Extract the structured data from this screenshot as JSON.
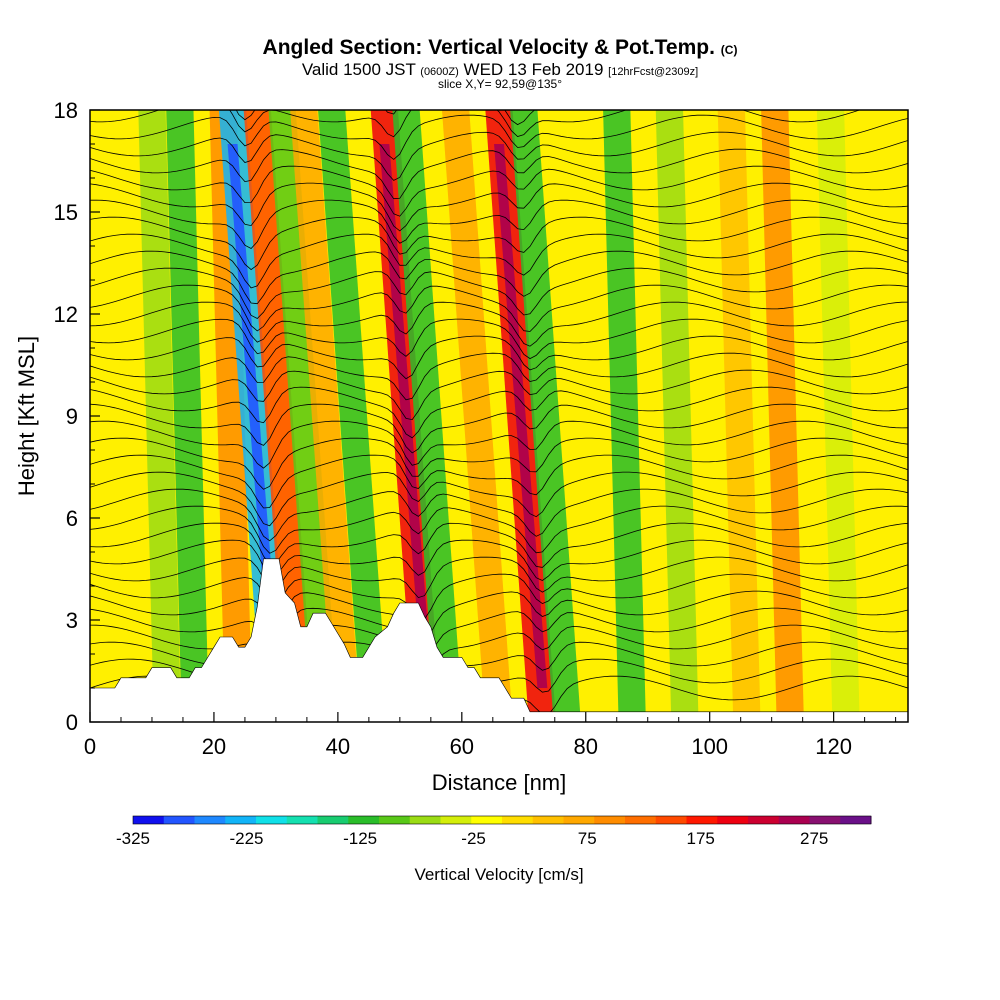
{
  "header": {
    "title": "Angled Section: Vertical Velocity & Pot.Temp.",
    "copyright": "(C)",
    "valid_prefix": "Valid 1500 JST",
    "valid_utc": "(0600Z)",
    "valid_date": "WED 13 Feb 2019",
    "forecast": "[12hrFcst@2309z]",
    "slice": "slice X,Y= 92,59@135°"
  },
  "chart_data": {
    "type": "heatmap",
    "title": "Angled Section: Vertical Velocity & Pot.Temp.",
    "xlabel": "Distance [nm]",
    "ylabel": "Height [Kft MSL]",
    "xlim": [
      0,
      132
    ],
    "ylim": [
      0,
      18
    ],
    "x_ticks": [
      0,
      20,
      40,
      60,
      80,
      100,
      120
    ],
    "y_ticks": [
      0,
      3,
      6,
      9,
      12,
      15,
      18
    ],
    "colorbar": {
      "label": "Vertical Velocity [cm/s]",
      "range": [
        -325,
        325
      ],
      "tick_values": [
        -325,
        -225,
        -125,
        -25,
        75,
        175,
        275
      ],
      "colors": [
        "#1010ee",
        "#2255ff",
        "#1e88ff",
        "#12b4f8",
        "#10e0e8",
        "#14e0b0",
        "#18cc70",
        "#2abd2a",
        "#58c818",
        "#9bdc14",
        "#d4ee0a",
        "#ffff00",
        "#ffdd00",
        "#ffc000",
        "#ffa800",
        "#ff8c00",
        "#ff6e00",
        "#ff4a00",
        "#ff1800",
        "#ee0010",
        "#cc0030",
        "#aa0050",
        "#881070",
        "#6a1088"
      ]
    },
    "vertical_velocity_bands": [
      {
        "x": 12.5,
        "value": -80
      },
      {
        "x": 17,
        "value": -110
      },
      {
        "x": 24,
        "value": 90
      },
      {
        "x": 30,
        "value": -230
      },
      {
        "x": 34,
        "value": 140
      },
      {
        "x": 38,
        "value": -100
      },
      {
        "x": 41.5,
        "value": 60
      },
      {
        "x": 46,
        "value": -110
      },
      {
        "x": 54.5,
        "value": 210
      },
      {
        "x": 58,
        "value": -120
      },
      {
        "x": 66,
        "value": 80
      },
      {
        "x": 73,
        "value": 200
      },
      {
        "x": 77,
        "value": -120
      },
      {
        "x": 87.5,
        "value": -110
      },
      {
        "x": 96,
        "value": -80
      },
      {
        "x": 106,
        "value": 50
      },
      {
        "x": 113,
        "value": 100
      },
      {
        "x": 122,
        "value": -40
      }
    ],
    "terrain_height_kft": [
      [
        0,
        1.0
      ],
      [
        4,
        1.0
      ],
      [
        5,
        1.3
      ],
      [
        9,
        1.3
      ],
      [
        10,
        1.6
      ],
      [
        13,
        1.6
      ],
      [
        14,
        1.3
      ],
      [
        16,
        1.3
      ],
      [
        17,
        1.6
      ],
      [
        18,
        1.6
      ],
      [
        19,
        1.9
      ],
      [
        20,
        2.2
      ],
      [
        21,
        2.5
      ],
      [
        23,
        2.5
      ],
      [
        24,
        2.2
      ],
      [
        25,
        2.2
      ],
      [
        26,
        2.5
      ],
      [
        27,
        3.4
      ],
      [
        28,
        4.8
      ],
      [
        30.5,
        4.8
      ],
      [
        31.5,
        3.8
      ],
      [
        33,
        3.5
      ],
      [
        34,
        2.8
      ],
      [
        35,
        2.8
      ],
      [
        36,
        3.2
      ],
      [
        38,
        3.2
      ],
      [
        39,
        2.9
      ],
      [
        40,
        2.6
      ],
      [
        41,
        2.3
      ],
      [
        42,
        1.9
      ],
      [
        44,
        1.9
      ],
      [
        45,
        2.2
      ],
      [
        46,
        2.5
      ],
      [
        48,
        2.8
      ],
      [
        49,
        3.2
      ],
      [
        50,
        3.5
      ],
      [
        53,
        3.5
      ],
      [
        54,
        3.1
      ],
      [
        55,
        2.8
      ],
      [
        56,
        2.2
      ],
      [
        57,
        1.9
      ],
      [
        60,
        1.9
      ],
      [
        61,
        1.6
      ],
      [
        62,
        1.6
      ],
      [
        63,
        1.3
      ],
      [
        66,
        1.3
      ],
      [
        67,
        1.0
      ],
      [
        68,
        0.7
      ],
      [
        70,
        0.7
      ],
      [
        71,
        0.3
      ],
      [
        132,
        0.3
      ]
    ]
  }
}
